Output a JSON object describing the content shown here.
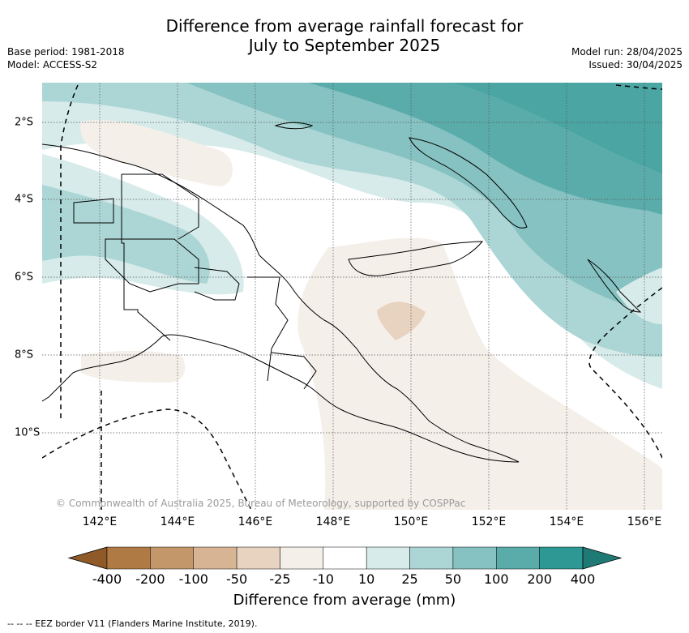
{
  "title_line1": "Difference from average rainfall forecast for",
  "title_line2": "July to September 2025",
  "base_period": "Base period: 1981-2018",
  "model": "Model: ACCESS-S2",
  "model_run": "Model run: 28/04/2025",
  "issued": "Issued: 30/04/2025",
  "lon_labels": [
    "142°E",
    "144°E",
    "146°E",
    "148°E",
    "150°E",
    "152°E",
    "154°E",
    "156°E"
  ],
  "lat_labels": [
    "2°S",
    "4°S",
    "6°S",
    "8°S",
    "10°S"
  ],
  "credit": "© Commonwealth of Australia 2025, Bureau of Meteorology, supported by COSPPac",
  "colorbar": {
    "ticks": [
      "-400",
      "-200",
      "-100",
      "-50",
      "-25",
      "-10",
      "10",
      "25",
      "50",
      "100",
      "200",
      "400"
    ],
    "colors": [
      "#8f5a28",
      "#b07a45",
      "#c4976a",
      "#d7b594",
      "#e8d2c0",
      "#f5efea",
      "#ffffff",
      "#d6ebea",
      "#acd6d5",
      "#86c2c1",
      "#5aacab",
      "#2e9894",
      "#1f7a76"
    ],
    "title": "Difference from average (mm)"
  },
  "eez_note": "-- -- -- EEZ border V11 (Flanders Marine Institute, 2019)."
}
